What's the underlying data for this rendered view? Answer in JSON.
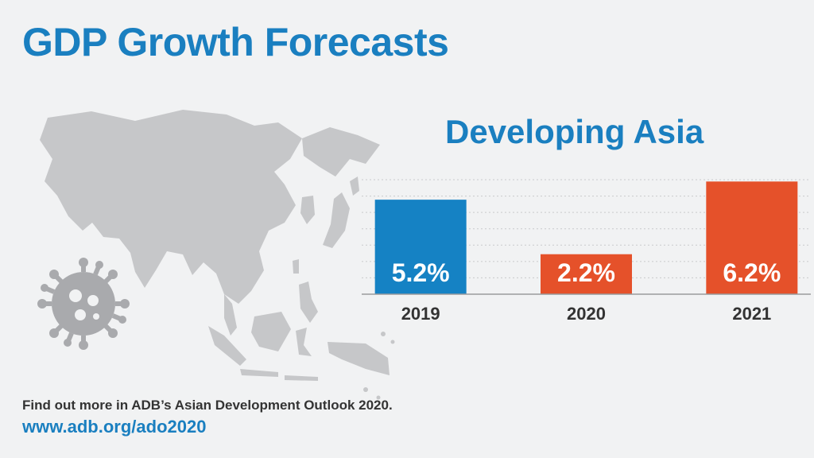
{
  "page": {
    "title": "GDP Growth Forecasts",
    "footer_note": "Find out more in ADB’s Asian Development Outlook 2020.",
    "footer_link": "www.adb.org/ado2020"
  },
  "colors": {
    "title_blue": "#1a7fc0",
    "bar_blue": "#1582c4",
    "bar_orange": "#e5512a",
    "map_gray": "#c6c7c9",
    "virus_gray": "#a9aaad"
  },
  "chart_data": {
    "type": "bar",
    "title": "Developing Asia",
    "categories": [
      "2019",
      "2020",
      "2021"
    ],
    "values": [
      5.2,
      2.2,
      6.2
    ],
    "value_labels": [
      "5.2%",
      "2.2%",
      "6.2%"
    ],
    "bar_colors": [
      "#1582c4",
      "#e5512a",
      "#e5512a"
    ],
    "xlabel": "",
    "ylabel": "",
    "ylim": [
      0,
      6.3
    ],
    "grid": true
  }
}
